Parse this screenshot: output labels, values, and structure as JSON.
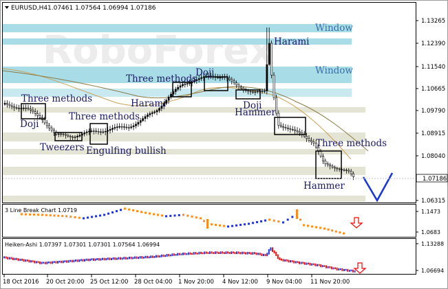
{
  "header": {
    "symbol": "EURUSD,H4",
    "ohlc": "1.07461 1.07564 1.06994 1.07186",
    "dropdown_icon": "triangle-down-icon"
  },
  "watermark": "RoboForex",
  "main_chart": {
    "price_ticks": [
      "1.13265",
      "1.12390",
      "1.11540",
      "1.10665",
      "1.09790",
      "1.08915",
      "1.08040",
      "1.07186",
      "1.06315"
    ],
    "current_price": "1.07186",
    "zones": {
      "window_1": "Window",
      "window_2": "Window"
    },
    "patterns": {
      "harami_top": "Harami",
      "doji_top": "Doji",
      "three_methods_top": "Three methods",
      "three_methods_left": "Three methods",
      "doji_left": "Doji",
      "three_methods_mid": "Three methods",
      "harami_mid": "Harami",
      "doji_mid": "Doji",
      "hammer_mid": "Hammer",
      "tweezers": "Tweezers",
      "engulfing_bullish": "Engulfing bullish",
      "three_methods_right": "Three methods",
      "hammer_right": "Hammer"
    },
    "colors": {
      "bull": "#000000",
      "bear": "#ffffff",
      "window_zone": "#a8dce6",
      "support_zone": "#e4e4d4",
      "forecast_arrow": "#1a36d6",
      "ma_fast": "#c9a25a",
      "ma_slow": "#8a7a45"
    }
  },
  "lb_panel": {
    "title": "3 Line Break Chart 1.0719",
    "ticks": [
      "1.1473",
      "1.0683"
    ],
    "colors": {
      "up": "#2233dd",
      "down": "#ff8c1a",
      "arrow": "#ff0000"
    }
  },
  "ha_panel": {
    "title": "Heiken-Ashi 1.07397 1.07301 1.07301 1.07564 1.06994",
    "ticks": [
      "1.13288",
      "1.06694"
    ],
    "colors": {
      "up": "#2233dd",
      "down": "#ee1111",
      "arrow": "#ff0000"
    }
  },
  "time_axis": [
    "18 Oct 2016",
    "20 Oct 20:00",
    "25 Oct 12:00",
    "28 Oct 04:00",
    "1 Nov 20:00",
    "4 Nov 12:00",
    "9 Nov 04:00",
    "11 Nov 20:00"
  ]
}
